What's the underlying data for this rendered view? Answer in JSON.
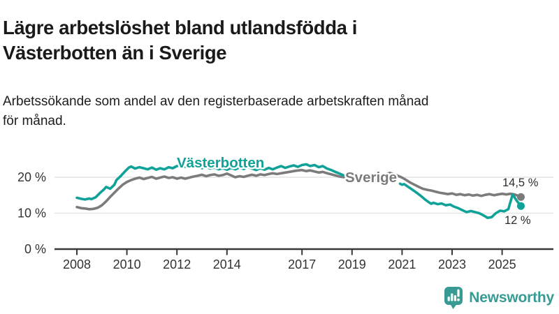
{
  "header": {
    "title_lines": [
      "Lägre arbetslöshet bland utlandsfödda i",
      "Västerbotten än i Sverige"
    ],
    "subtitle_lines": [
      "Arbetssökande som andel av den registerbaserade arbetskraften månad",
      "för månad."
    ]
  },
  "colors": {
    "teal": "#10A298",
    "gray": "#7B7B7B",
    "brand": "#379B94",
    "text_dark": "#1a1a1a",
    "axis": "#383838",
    "tick_text": "#333333",
    "grid": "#E4E4E4",
    "end_label_text": "#2B2B2B"
  },
  "chart_data": {
    "type": "line",
    "title": "Lägre arbetslöshet bland utlandsfödda i Västerbotten än i Sverige",
    "subtitle": "Arbetssökande som andel av den registerbaserade arbetskraften månad för månad.",
    "unit": "%",
    "grid": true,
    "legend_position": "inline-labels",
    "x_axis": {
      "ticks": [
        2008,
        2010,
        2012,
        2014,
        2017,
        2019,
        2021,
        2023,
        2025
      ],
      "range": [
        2007.3,
        2026.3
      ]
    },
    "y_axis": {
      "ticks": [
        {
          "value": 0,
          "label": "0 %"
        },
        {
          "value": 10,
          "label": "10 %"
        },
        {
          "value": 20,
          "label": "20 %"
        }
      ],
      "range": [
        0,
        28
      ]
    },
    "series": [
      {
        "name": "Sverige",
        "color_key": "gray",
        "end_value": 14.5,
        "end_label": "14,5 %",
        "segments": [
          [
            [
              2008.0,
              11.7
            ],
            [
              2008.17,
              11.4
            ],
            [
              2008.33,
              11.3
            ],
            [
              2008.5,
              11.1
            ],
            [
              2008.67,
              11.2
            ],
            [
              2008.83,
              11.5
            ],
            [
              2009.0,
              12.2
            ],
            [
              2009.17,
              13.3
            ],
            [
              2009.33,
              14.5
            ],
            [
              2009.5,
              15.7
            ],
            [
              2009.67,
              16.9
            ],
            [
              2009.83,
              17.9
            ],
            [
              2010.0,
              18.7
            ],
            [
              2010.17,
              19.2
            ],
            [
              2010.33,
              19.6
            ],
            [
              2010.5,
              19.9
            ],
            [
              2010.67,
              19.5
            ],
            [
              2010.83,
              19.8
            ],
            [
              2011.0,
              20.1
            ],
            [
              2011.17,
              19.6
            ],
            [
              2011.33,
              19.9
            ],
            [
              2011.5,
              20.2
            ],
            [
              2011.67,
              19.8
            ],
            [
              2011.83,
              20.0
            ],
            [
              2012.0,
              19.6
            ],
            [
              2012.17,
              19.9
            ],
            [
              2012.33,
              19.6
            ],
            [
              2012.5,
              19.9
            ],
            [
              2012.67,
              20.2
            ],
            [
              2012.83,
              20.4
            ],
            [
              2013.0,
              20.7
            ],
            [
              2013.17,
              20.3
            ],
            [
              2013.33,
              20.6
            ],
            [
              2013.5,
              20.8
            ],
            [
              2013.67,
              20.4
            ],
            [
              2013.83,
              20.6
            ],
            [
              2014.0,
              21.0
            ],
            [
              2014.17,
              20.5
            ],
            [
              2014.33,
              20.0
            ],
            [
              2014.5,
              20.3
            ],
            [
              2014.67,
              20.1
            ],
            [
              2014.83,
              20.4
            ],
            [
              2015.0,
              20.7
            ],
            [
              2015.17,
              20.4
            ],
            [
              2015.33,
              20.8
            ],
            [
              2015.5,
              20.6
            ],
            [
              2015.67,
              20.9
            ],
            [
              2015.83,
              21.1
            ],
            [
              2016.0,
              20.9
            ],
            [
              2016.25,
              21.2
            ],
            [
              2016.5,
              21.5
            ],
            [
              2016.75,
              21.8
            ],
            [
              2017.0,
              22.0
            ],
            [
              2017.17,
              21.7
            ],
            [
              2017.33,
              21.9
            ],
            [
              2017.5,
              21.6
            ],
            [
              2017.67,
              21.3
            ],
            [
              2017.83,
              21.5
            ],
            [
              2018.0,
              21.1
            ],
            [
              2018.17,
              20.8
            ],
            [
              2018.33,
              20.5
            ],
            [
              2018.5,
              20.2
            ],
            [
              2018.67,
              20.0
            ],
            [
              2018.83,
              20.2
            ],
            [
              2019.0,
              19.8
            ],
            [
              2019.25,
              19.4
            ],
            [
              2019.5,
              19.1
            ],
            [
              2019.75,
              18.9
            ],
            [
              2020.0,
              19.3
            ],
            [
              2020.17,
              20.1
            ],
            [
              2020.33,
              20.8
            ],
            [
              2020.5,
              21.2
            ],
            [
              2020.67,
              20.9
            ],
            [
              2020.83,
              20.4
            ],
            [
              2021.0,
              19.9
            ],
            [
              2021.17,
              19.2
            ],
            [
              2021.33,
              18.5
            ],
            [
              2021.5,
              17.9
            ],
            [
              2021.67,
              17.3
            ],
            [
              2021.83,
              16.8
            ],
            [
              2022.0,
              16.5
            ],
            [
              2022.17,
              16.3
            ],
            [
              2022.33,
              16.0
            ],
            [
              2022.5,
              15.7
            ],
            [
              2022.67,
              15.5
            ],
            [
              2022.83,
              15.3
            ],
            [
              2023.0,
              15.5
            ],
            [
              2023.17,
              15.1
            ],
            [
              2023.33,
              15.3
            ],
            [
              2023.5,
              15.0
            ],
            [
              2023.67,
              15.2
            ],
            [
              2023.83,
              14.9
            ],
            [
              2024.0,
              15.1
            ],
            [
              2024.17,
              14.8
            ],
            [
              2024.33,
              15.1
            ],
            [
              2024.5,
              15.3
            ],
            [
              2024.67,
              15.0
            ],
            [
              2024.83,
              15.2
            ],
            [
              2025.0,
              15.4
            ],
            [
              2025.17,
              15.2
            ],
            [
              2025.33,
              15.4
            ],
            [
              2025.5,
              15.2
            ],
            [
              2025.75,
              14.5
            ]
          ]
        ]
      },
      {
        "name": "Västerbotten",
        "color_key": "teal",
        "end_value": 12,
        "end_label": "12 %",
        "segments": [
          [
            [
              2008.0,
              14.3
            ],
            [
              2008.17,
              14.0
            ],
            [
              2008.33,
              13.8
            ],
            [
              2008.5,
              14.1
            ],
            [
              2008.58,
              13.9
            ],
            [
              2008.75,
              14.4
            ],
            [
              2008.92,
              15.6
            ],
            [
              2009.08,
              16.6
            ],
            [
              2009.17,
              17.3
            ],
            [
              2009.33,
              16.8
            ],
            [
              2009.5,
              17.9
            ],
            [
              2009.58,
              19.2
            ],
            [
              2009.75,
              20.3
            ],
            [
              2009.92,
              21.6
            ],
            [
              2010.08,
              22.7
            ],
            [
              2010.17,
              23.0
            ],
            [
              2010.33,
              22.4
            ],
            [
              2010.5,
              22.8
            ],
            [
              2010.67,
              22.5
            ],
            [
              2010.83,
              22.2
            ],
            [
              2011.0,
              22.7
            ],
            [
              2011.17,
              22.1
            ],
            [
              2011.33,
              22.5
            ],
            [
              2011.5,
              22.2
            ],
            [
              2011.67,
              22.8
            ],
            [
              2011.83,
              22.5
            ],
            [
              2012.0,
              23.1
            ],
            [
              2012.17,
              23.4
            ],
            [
              2012.33,
              22.9
            ],
            [
              2012.5,
              23.2
            ],
            [
              2012.67,
              22.7
            ],
            [
              2012.83,
              23.0
            ],
            [
              2013.0,
              22.5
            ],
            [
              2013.17,
              22.9
            ],
            [
              2013.33,
              22.4
            ],
            [
              2013.5,
              22.7
            ],
            [
              2013.67,
              22.2
            ],
            [
              2013.83,
              22.5
            ],
            [
              2014.0,
              22.1
            ],
            [
              2014.17,
              22.6
            ],
            [
              2014.33,
              22.2
            ],
            [
              2014.5,
              22.7
            ],
            [
              2014.67,
              22.3
            ],
            [
              2014.83,
              22.8
            ],
            [
              2015.0,
              22.4
            ],
            [
              2015.17,
              22.0
            ],
            [
              2015.33,
              22.5
            ],
            [
              2015.5,
              22.1
            ],
            [
              2015.67,
              22.6
            ],
            [
              2015.83,
              22.2
            ],
            [
              2016.0,
              22.7
            ],
            [
              2016.17,
              23.1
            ],
            [
              2016.33,
              22.6
            ],
            [
              2016.5,
              23.0
            ],
            [
              2016.67,
              23.3
            ],
            [
              2016.83,
              22.9
            ],
            [
              2017.0,
              23.4
            ],
            [
              2017.17,
              23.6
            ],
            [
              2017.33,
              23.1
            ],
            [
              2017.5,
              23.4
            ],
            [
              2017.67,
              22.8
            ],
            [
              2017.83,
              23.1
            ],
            [
              2018.0,
              22.4
            ],
            [
              2018.17,
              22.0
            ],
            [
              2018.33,
              21.5
            ],
            [
              2018.5,
              21.0
            ],
            [
              2018.67,
              20.5
            ]
          ],
          [
            [
              2020.92,
              18.2
            ],
            [
              2021.0,
              17.9
            ],
            [
              2021.08,
              18.1
            ],
            [
              2021.25,
              17.3
            ],
            [
              2021.42,
              16.5
            ],
            [
              2021.58,
              15.7
            ],
            [
              2021.75,
              14.8
            ],
            [
              2021.92,
              13.8
            ],
            [
              2022.08,
              13.0
            ],
            [
              2022.17,
              12.6
            ],
            [
              2022.25,
              12.9
            ],
            [
              2022.42,
              12.5
            ],
            [
              2022.58,
              12.7
            ],
            [
              2022.75,
              12.2
            ],
            [
              2022.92,
              12.4
            ],
            [
              2023.08,
              11.8
            ],
            [
              2023.25,
              11.4
            ],
            [
              2023.42,
              10.8
            ],
            [
              2023.58,
              10.3
            ],
            [
              2023.75,
              10.6
            ],
            [
              2023.92,
              10.3
            ],
            [
              2024.08,
              10.0
            ],
            [
              2024.25,
              9.4
            ],
            [
              2024.42,
              8.7
            ],
            [
              2024.58,
              8.9
            ],
            [
              2024.75,
              10.0
            ],
            [
              2024.92,
              10.7
            ],
            [
              2025.08,
              10.5
            ],
            [
              2025.25,
              11.1
            ],
            [
              2025.42,
              15.2
            ],
            [
              2025.58,
              13.5
            ],
            [
              2025.75,
              12.0
            ]
          ]
        ]
      }
    ]
  },
  "footer": {
    "brand": "Newsworthy"
  }
}
